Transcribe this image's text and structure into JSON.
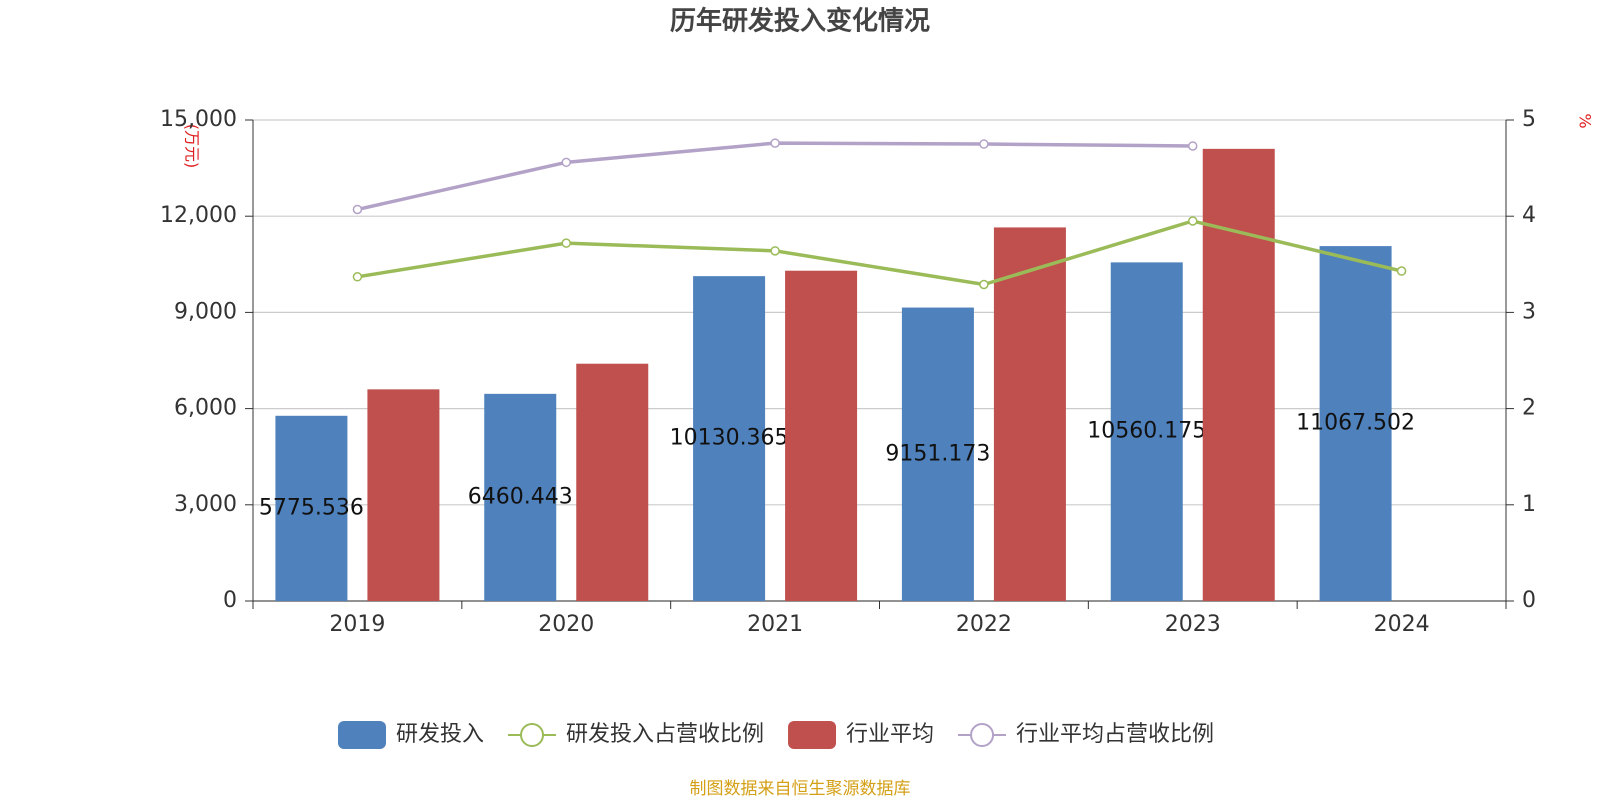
{
  "chart_data": {
    "type": "bar-line",
    "title": "历年研发投入变化情况",
    "y_label": "(万元)",
    "y2_label": "%",
    "source": "制图数据来自恒生聚源数据库",
    "categories": [
      "2019",
      "2020",
      "2021",
      "2022",
      "2023",
      "2024"
    ],
    "ylim": [
      0,
      15000
    ],
    "yticks": [
      0,
      {
        "value": 3000,
        "label": "3,000"
      },
      {
        "value": 6000,
        "label": "6,000"
      },
      {
        "value": 9000,
        "label": "9,000"
      },
      {
        "value": 12000,
        "label": "12,000"
      },
      {
        "value": 15000,
        "label": "15,000"
      }
    ],
    "y2lim": [
      0,
      5
    ],
    "y2ticks": [
      0,
      1,
      2,
      3,
      4,
      5
    ],
    "grid": true,
    "series": [
      {
        "name": "研发投入",
        "type": "bar",
        "color": "#4f81bd",
        "values": [
          5775.536,
          6460.443,
          10130.365,
          9151.173,
          10560.175,
          11067.502
        ],
        "show_labels": true
      },
      {
        "name": "研发投入占营收比例",
        "type": "line",
        "axis": "y2",
        "color": "#9bbb59",
        "values": [
          3.37,
          3.72,
          3.64,
          3.29,
          3.95,
          3.43
        ]
      },
      {
        "name": "行业平均",
        "type": "bar",
        "color": "#c0504d",
        "values": [
          6600,
          7400,
          10300,
          11650,
          14100,
          null
        ]
      },
      {
        "name": "行业平均占营收比例",
        "type": "line",
        "axis": "y2",
        "color": "#b3a2c7",
        "values": [
          4.07,
          4.56,
          4.76,
          4.75,
          4.73,
          null
        ]
      }
    ]
  }
}
